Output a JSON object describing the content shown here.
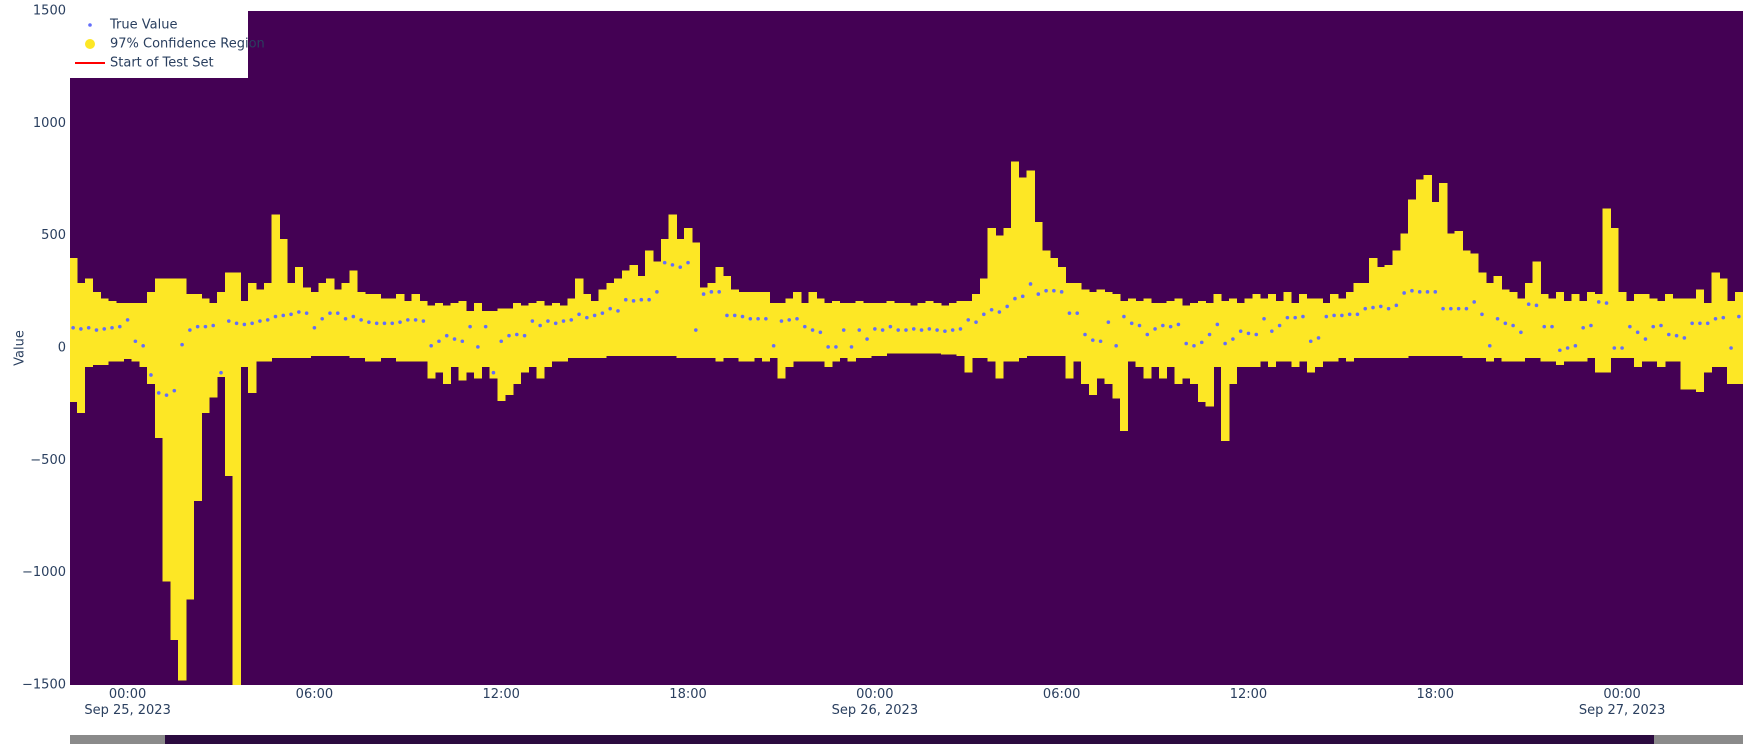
{
  "chart_data": {
    "type": "band",
    "y_label": "Value",
    "plot_bgcolor": "#440154",
    "legend": "top-left",
    "x": [
      "2023-09-24 22:15",
      "2023-09-24 22:30",
      "2023-09-24 22:45",
      "2023-09-24 23:00",
      "2023-09-24 23:15",
      "2023-09-24 23:30",
      "2023-09-24 23:45",
      "2023-09-25 00:00",
      "2023-09-25 00:15",
      "2023-09-25 00:30",
      "2023-09-25 00:45",
      "2023-09-25 01:00",
      "2023-09-25 01:15",
      "2023-09-25 01:30",
      "2023-09-25 01:45",
      "2023-09-25 02:00",
      "2023-09-25 02:15",
      "2023-09-25 02:30",
      "2023-09-25 02:45",
      "2023-09-25 03:00",
      "2023-09-25 03:15",
      "2023-09-25 03:30",
      "2023-09-25 03:45",
      "2023-09-25 04:00",
      "2023-09-25 04:15",
      "2023-09-25 04:30",
      "2023-09-25 04:45",
      "2023-09-25 05:00",
      "2023-09-25 05:15",
      "2023-09-25 05:30",
      "2023-09-25 05:45",
      "2023-09-25 06:00",
      "2023-09-25 06:15",
      "2023-09-25 06:30",
      "2023-09-25 06:45",
      "2023-09-25 07:00",
      "2023-09-25 07:15",
      "2023-09-25 07:30",
      "2023-09-25 07:45",
      "2023-09-25 08:00",
      "2023-09-25 08:15",
      "2023-09-25 08:30",
      "2023-09-25 08:45",
      "2023-09-25 09:00",
      "2023-09-25 09:15",
      "2023-09-25 09:30",
      "2023-09-25 09:45",
      "2023-09-25 10:00",
      "2023-09-25 10:15",
      "2023-09-25 10:30",
      "2023-09-25 10:45",
      "2023-09-25 11:00",
      "2023-09-25 11:15",
      "2023-09-25 11:30",
      "2023-09-25 11:45",
      "2023-09-25 12:00",
      "2023-09-25 12:15",
      "2023-09-25 12:30",
      "2023-09-25 12:45",
      "2023-09-25 13:00",
      "2023-09-25 13:15",
      "2023-09-25 13:30",
      "2023-09-25 13:45",
      "2023-09-25 14:00",
      "2023-09-25 14:15",
      "2023-09-25 14:30",
      "2023-09-25 14:45",
      "2023-09-25 15:00",
      "2023-09-25 15:15",
      "2023-09-25 15:30",
      "2023-09-25 15:45",
      "2023-09-25 16:00",
      "2023-09-25 16:15",
      "2023-09-25 16:30",
      "2023-09-25 16:45",
      "2023-09-25 17:00",
      "2023-09-25 17:15",
      "2023-09-25 17:30",
      "2023-09-25 17:45",
      "2023-09-25 18:00",
      "2023-09-25 18:15",
      "2023-09-25 18:30",
      "2023-09-25 18:45",
      "2023-09-25 19:00",
      "2023-09-25 19:15",
      "2023-09-25 19:30",
      "2023-09-25 19:45",
      "2023-09-25 20:00",
      "2023-09-25 20:15",
      "2023-09-25 20:30",
      "2023-09-25 20:45",
      "2023-09-25 21:00",
      "2023-09-25 21:15",
      "2023-09-25 21:30",
      "2023-09-25 21:45",
      "2023-09-25 22:00",
      "2023-09-25 22:15",
      "2023-09-25 22:30",
      "2023-09-25 22:45",
      "2023-09-25 23:00",
      "2023-09-25 23:15",
      "2023-09-25 23:30",
      "2023-09-25 23:45",
      "2023-09-26 00:00",
      "2023-09-26 00:15",
      "2023-09-26 00:30",
      "2023-09-26 00:45",
      "2023-09-26 01:00",
      "2023-09-26 01:15",
      "2023-09-26 01:30",
      "2023-09-26 01:45",
      "2023-09-26 02:00",
      "2023-09-26 02:15",
      "2023-09-26 02:30",
      "2023-09-26 02:45",
      "2023-09-26 03:00",
      "2023-09-26 03:15",
      "2023-09-26 03:30",
      "2023-09-26 03:45",
      "2023-09-26 04:00",
      "2023-09-26 04:15",
      "2023-09-26 04:30",
      "2023-09-26 04:45",
      "2023-09-26 05:00",
      "2023-09-26 05:15",
      "2023-09-26 05:30",
      "2023-09-26 05:45",
      "2023-09-26 06:00",
      "2023-09-26 06:15",
      "2023-09-26 06:30",
      "2023-09-26 06:45",
      "2023-09-26 07:00",
      "2023-09-26 07:15",
      "2023-09-26 07:30",
      "2023-09-26 07:45",
      "2023-09-26 08:00",
      "2023-09-26 08:15",
      "2023-09-26 08:30",
      "2023-09-26 08:45",
      "2023-09-26 09:00",
      "2023-09-26 09:15",
      "2023-09-26 09:30",
      "2023-09-26 09:45",
      "2023-09-26 10:00",
      "2023-09-26 10:15",
      "2023-09-26 10:30",
      "2023-09-26 10:45",
      "2023-09-26 11:00",
      "2023-09-26 11:15",
      "2023-09-26 11:30",
      "2023-09-26 11:45",
      "2023-09-26 12:00",
      "2023-09-26 12:15",
      "2023-09-26 12:30",
      "2023-09-26 12:45",
      "2023-09-26 13:00",
      "2023-09-26 13:15",
      "2023-09-26 13:30",
      "2023-09-26 13:45",
      "2023-09-26 14:00",
      "2023-09-26 14:15",
      "2023-09-26 14:30",
      "2023-09-26 14:45",
      "2023-09-26 15:00",
      "2023-09-26 15:15",
      "2023-09-26 15:30",
      "2023-09-26 15:45",
      "2023-09-26 16:00",
      "2023-09-26 16:15",
      "2023-09-26 16:30",
      "2023-09-26 16:45",
      "2023-09-26 17:00",
      "2023-09-26 17:15",
      "2023-09-26 17:30",
      "2023-09-26 17:45",
      "2023-09-26 18:00",
      "2023-09-26 18:15",
      "2023-09-26 18:30",
      "2023-09-26 18:45",
      "2023-09-26 19:00",
      "2023-09-26 19:15",
      "2023-09-26 19:30",
      "2023-09-26 19:45",
      "2023-09-26 20:00",
      "2023-09-26 20:15",
      "2023-09-26 20:30",
      "2023-09-26 20:45",
      "2023-09-26 21:00",
      "2023-09-26 21:15",
      "2023-09-26 21:30",
      "2023-09-26 21:45",
      "2023-09-26 22:00",
      "2023-09-26 22:15",
      "2023-09-26 22:30",
      "2023-09-26 22:45",
      "2023-09-26 23:00",
      "2023-09-26 23:15",
      "2023-09-26 23:30",
      "2023-09-26 23:45",
      "2023-09-27 00:00",
      "2023-09-27 00:15",
      "2023-09-27 00:30",
      "2023-09-27 00:45",
      "2023-09-27 01:00",
      "2023-09-27 01:15",
      "2023-09-27 01:30",
      "2023-09-27 01:45",
      "2023-09-27 02:00",
      "2023-09-27 02:15",
      "2023-09-27 02:30",
      "2023-09-27 02:45",
      "2023-09-27 03:00",
      "2023-09-27 03:15",
      "2023-09-27 03:30",
      "2023-09-27 03:45"
    ],
    "series": [
      {
        "name": "True Value",
        "color": "#636efa",
        "values": [
          90,
          85,
          90,
          80,
          85,
          90,
          95,
          125,
          30,
          10,
          -120,
          -200,
          -210,
          -190,
          15,
          80,
          95,
          95,
          100,
          -110,
          120,
          110,
          105,
          110,
          120,
          125,
          140,
          145,
          150,
          160,
          155,
          90,
          130,
          155,
          155,
          130,
          140,
          125,
          115,
          110,
          110,
          110,
          115,
          125,
          125,
          120,
          10,
          30,
          55,
          40,
          30,
          95,
          5,
          95,
          -110,
          30,
          55,
          60,
          55,
          120,
          100,
          120,
          110,
          120,
          125,
          150,
          135,
          145,
          155,
          175,
          165,
          215,
          210,
          215,
          215,
          250,
          380,
          370,
          360,
          380,
          80,
          240,
          250,
          250,
          145,
          145,
          140,
          130,
          130,
          130,
          10,
          120,
          125,
          130,
          95,
          80,
          70,
          5,
          5,
          80,
          5,
          80,
          40,
          85,
          80,
          95,
          80,
          80,
          85,
          80,
          85,
          80,
          75,
          80,
          85,
          125,
          115,
          150,
          170,
          160,
          185,
          220,
          230,
          285,
          240,
          255,
          255,
          250,
          155,
          155,
          60,
          35,
          30,
          115,
          10,
          140,
          110,
          100,
          60,
          85,
          100,
          95,
          105,
          20,
          10,
          25,
          60,
          105,
          20,
          40,
          75,
          65,
          60,
          130,
          75,
          100,
          135,
          135,
          140,
          30,
          45,
          140,
          145,
          145,
          150,
          150,
          175,
          180,
          185,
          175,
          190,
          245,
          255,
          250,
          250,
          250,
          175,
          175,
          175,
          175,
          205,
          150,
          10,
          130,
          110,
          100,
          70,
          195,
          190,
          95,
          95,
          -10,
          0,
          10,
          90,
          100,
          205,
          200,
          0,
          0,
          95,
          70,
          40,
          95,
          100,
          60,
          55,
          45,
          110,
          110,
          110,
          130,
          135,
          0,
          140
        ]
      },
      {
        "name": "97% Confidence Region",
        "color": "#fde725",
        "lower": [
          -240,
          -290,
          -85,
          -75,
          -75,
          -60,
          -60,
          -50,
          -60,
          -85,
          -160,
          -400,
          -1040,
          -1300,
          -1480,
          -1120,
          -680,
          -290,
          -220,
          -130,
          -570,
          -1500,
          -85,
          -200,
          -60,
          -60,
          -45,
          -45,
          -45,
          -45,
          -45,
          -35,
          -35,
          -35,
          -35,
          -35,
          -45,
          -45,
          -60,
          -60,
          -45,
          -45,
          -60,
          -60,
          -60,
          -60,
          -135,
          -110,
          -160,
          -85,
          -145,
          -110,
          -135,
          -85,
          -135,
          -235,
          -210,
          -160,
          -110,
          -85,
          -135,
          -85,
          -60,
          -60,
          -45,
          -45,
          -45,
          -45,
          -45,
          -35,
          -35,
          -35,
          -35,
          -35,
          -35,
          -35,
          -35,
          -35,
          -45,
          -45,
          -45,
          -45,
          -45,
          -60,
          -45,
          -45,
          -60,
          -60,
          -45,
          -60,
          -45,
          -135,
          -85,
          -60,
          -60,
          -60,
          -60,
          -85,
          -60,
          -45,
          -60,
          -45,
          -45,
          -35,
          -35,
          -25,
          -25,
          -25,
          -25,
          -25,
          -25,
          -25,
          -30,
          -30,
          -35,
          -110,
          -45,
          -45,
          -60,
          -135,
          -60,
          -60,
          -45,
          -35,
          -35,
          -35,
          -35,
          -35,
          -135,
          -60,
          -160,
          -210,
          -135,
          -160,
          -225,
          -370,
          -60,
          -85,
          -135,
          -85,
          -135,
          -85,
          -160,
          -135,
          -160,
          -240,
          -260,
          -85,
          -415,
          -160,
          -85,
          -85,
          -85,
          -60,
          -85,
          -60,
          -60,
          -85,
          -60,
          -110,
          -85,
          -60,
          -60,
          -45,
          -60,
          -45,
          -45,
          -45,
          -45,
          -45,
          -45,
          -45,
          -35,
          -35,
          -35,
          -35,
          -35,
          -35,
          -35,
          -45,
          -45,
          -45,
          -60,
          -45,
          -60,
          -60,
          -60,
          -45,
          -45,
          -60,
          -60,
          -75,
          -60,
          -60,
          -60,
          -45,
          -110,
          -110,
          -45,
          -45,
          -45,
          -85,
          -60,
          -60,
          -85,
          -60,
          -60,
          -185,
          -185,
          -195,
          -110,
          -85,
          -85,
          -160,
          -160
        ],
        "upper": [
          400,
          290,
          310,
          250,
          220,
          210,
          200,
          200,
          200,
          200,
          250,
          310,
          310,
          310,
          310,
          240,
          240,
          220,
          200,
          250,
          335,
          335,
          210,
          290,
          260,
          290,
          595,
          485,
          290,
          360,
          270,
          250,
          290,
          310,
          260,
          290,
          345,
          250,
          240,
          240,
          220,
          220,
          240,
          210,
          240,
          210,
          190,
          200,
          190,
          200,
          210,
          165,
          200,
          165,
          165,
          175,
          175,
          200,
          190,
          200,
          210,
          190,
          200,
          190,
          220,
          310,
          240,
          210,
          260,
          290,
          310,
          345,
          370,
          320,
          435,
          385,
          485,
          595,
          485,
          535,
          470,
          270,
          290,
          360,
          320,
          260,
          250,
          250,
          250,
          250,
          200,
          200,
          220,
          250,
          200,
          250,
          220,
          200,
          210,
          200,
          200,
          210,
          200,
          200,
          200,
          210,
          200,
          200,
          190,
          200,
          210,
          200,
          190,
          200,
          210,
          210,
          240,
          310,
          535,
          500,
          535,
          830,
          760,
          790,
          560,
          435,
          400,
          360,
          290,
          290,
          260,
          250,
          260,
          250,
          240,
          210,
          220,
          210,
          220,
          200,
          200,
          210,
          220,
          190,
          200,
          210,
          200,
          240,
          210,
          220,
          200,
          220,
          240,
          220,
          240,
          210,
          250,
          200,
          240,
          220,
          220,
          200,
          240,
          220,
          250,
          290,
          290,
          400,
          360,
          370,
          435,
          510,
          660,
          750,
          770,
          650,
          735,
          510,
          520,
          435,
          420,
          335,
          290,
          320,
          260,
          250,
          220,
          290,
          385,
          240,
          220,
          250,
          210,
          240,
          210,
          250,
          240,
          620,
          535,
          250,
          210,
          240,
          240,
          220,
          210,
          240,
          220,
          220,
          220,
          260,
          200,
          335,
          310,
          210,
          250
        ]
      },
      {
        "name": "Start of Test Set",
        "color": "#ff0000"
      }
    ],
    "xlim": [
      "2023-09-24 22:09",
      "2023-09-27 03:53"
    ],
    "xticks": [
      {
        "value": "2023-09-25 00:00",
        "label": "00:00\nSep 25, 2023"
      },
      {
        "value": "2023-09-25 06:00",
        "label": "06:00"
      },
      {
        "value": "2023-09-25 12:00",
        "label": "12:00"
      },
      {
        "value": "2023-09-25 18:00",
        "label": "18:00"
      },
      {
        "value": "2023-09-26 00:00",
        "label": "00:00\nSep 26, 2023"
      },
      {
        "value": "2023-09-26 06:00",
        "label": "06:00"
      },
      {
        "value": "2023-09-26 12:00",
        "label": "12:00"
      },
      {
        "value": "2023-09-26 18:00",
        "label": "18:00"
      },
      {
        "value": "2023-09-27 00:00",
        "label": "00:00\nSep 27, 2023"
      }
    ],
    "ylim": [
      -1500,
      1500
    ],
    "yticks": [
      1500,
      1000,
      500,
      0,
      {
        "value": -500,
        "label": "−500"
      },
      {
        "value": -1000,
        "label": "−1000"
      },
      {
        "value": -1500,
        "label": "−1500"
      }
    ]
  }
}
